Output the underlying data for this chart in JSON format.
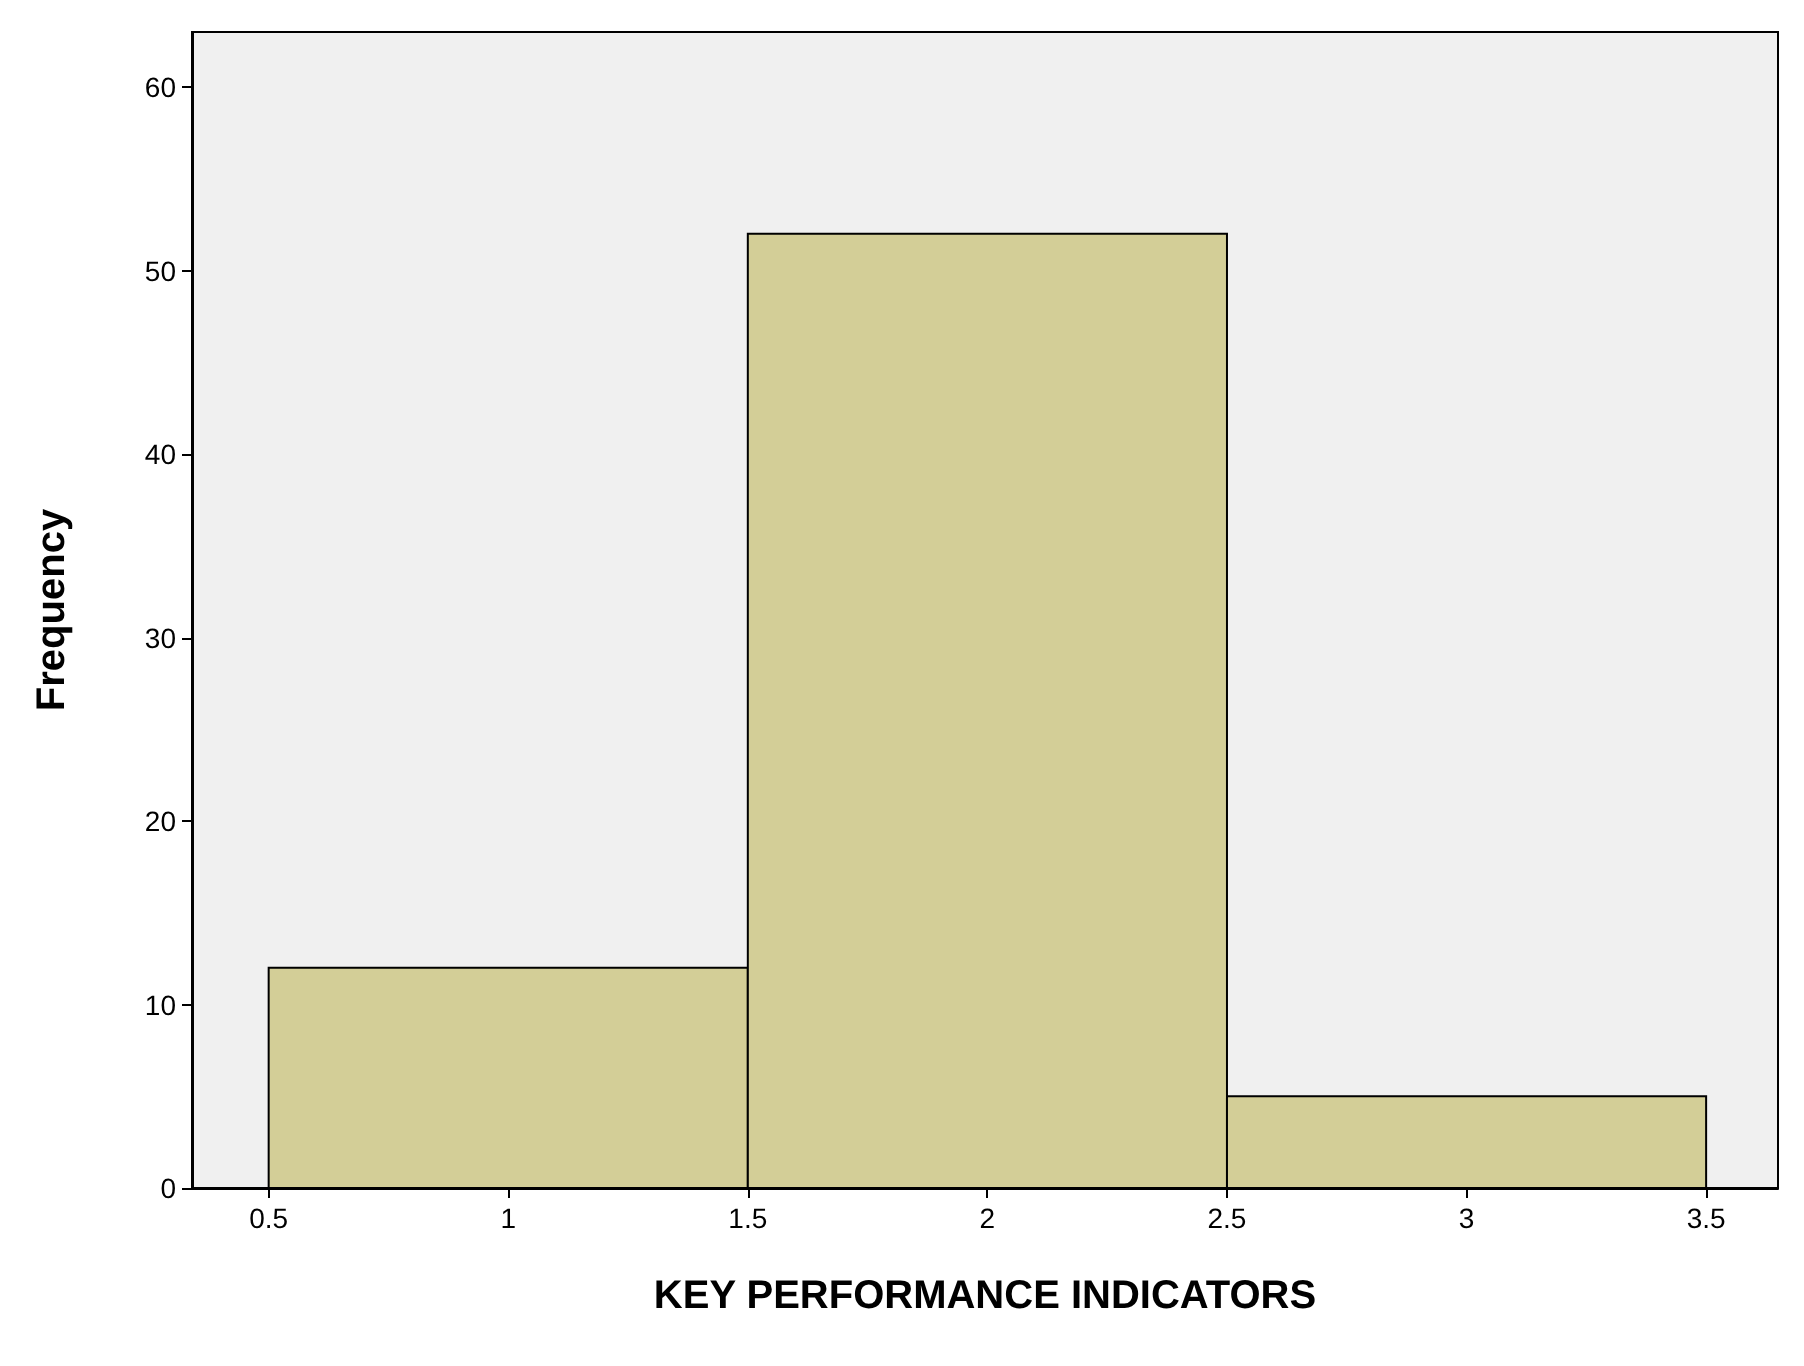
{
  "chart_data": {
    "type": "histogram",
    "xlabel": "KEY PERFORMANCE INDICATORS",
    "ylabel": "Frequency",
    "bins": [
      0.5,
      1.5,
      2.5,
      3.5
    ],
    "values": [
      12,
      52,
      5
    ],
    "color": "#d3ce97",
    "xlim": [
      0.34,
      3.65
    ],
    "xticks": [
      0.5,
      1,
      1.5,
      2,
      2.5,
      3,
      3.5
    ],
    "ylim": [
      0,
      63
    ],
    "yticks": [
      0,
      10,
      20,
      30,
      40,
      50,
      60
    ]
  }
}
